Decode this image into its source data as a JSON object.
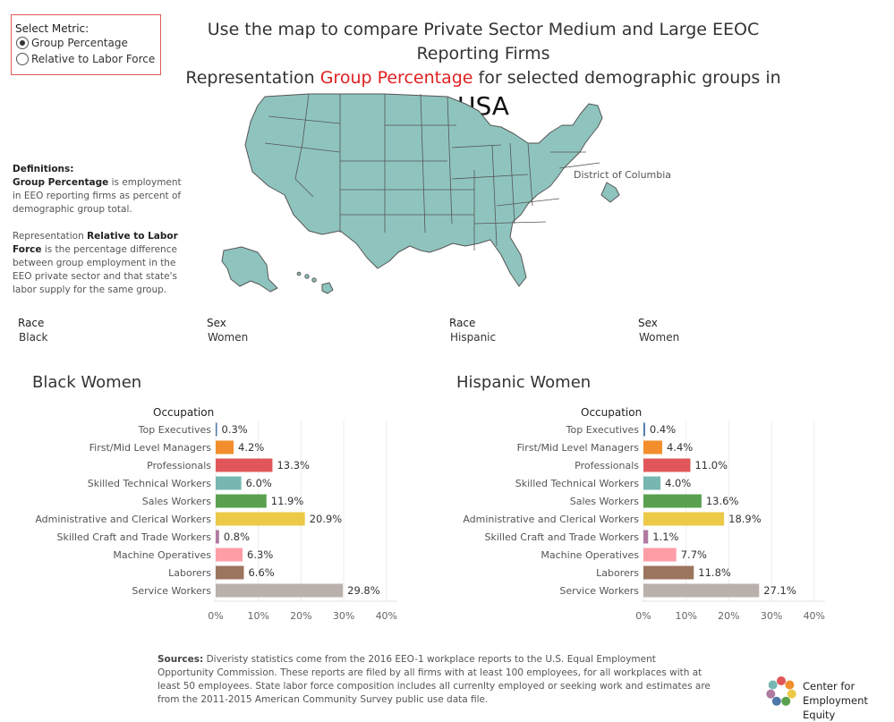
{
  "metric_selector": {
    "header": "Select Metric:",
    "options": [
      {
        "label": "Group Percentage",
        "selected": true
      },
      {
        "label": "Relative to Labor Force",
        "selected": false
      }
    ]
  },
  "title": {
    "line1": "Use the map to compare Private Sector Medium and Large EEOC Reporting Firms",
    "line2_pre": "Representation",
    "line2_highlight": "Group Percentage",
    "line2_post": "for selected demographic groups in",
    "line3": "USA",
    "highlight_color": "#e02020"
  },
  "map": {
    "dc_label": "District of Columbia",
    "fill_color": "#8fc4be",
    "stroke_color": "#555555"
  },
  "definitions": {
    "header": "Definitions:",
    "p1_term": "Group Percentage",
    "p1_text": "is employment in EEO reporting firms as percent of demographic group total.",
    "p2_pre": "Representation",
    "p2_term": "Relative to Labor Force",
    "p2_text": "is the percentage difference between group employment in the EEO private sector and that state's labor supply for the same group."
  },
  "filters": {
    "left_race_label": "Race",
    "left_race_value": "Black",
    "left_sex_label": "Sex",
    "left_sex_value": "Women",
    "right_race_label": "Race",
    "right_race_value": "Hispanic",
    "right_sex_label": "Sex",
    "right_sex_value": "Women"
  },
  "chart_data": [
    {
      "type": "bar",
      "orientation": "horizontal",
      "title": "Black Women",
      "ylabel": "Occupation",
      "categories": [
        "Top Executives",
        "First/Mid Level Managers",
        "Professionals",
        "Skilled Technical Workers",
        "Sales Workers",
        "Administrative and Clerical Workers",
        "Skilled Craft and Trade Workers",
        "Machine Operatives",
        "Laborers",
        "Service Workers"
      ],
      "values": [
        0.3,
        4.2,
        13.3,
        6.0,
        11.9,
        20.9,
        0.8,
        6.3,
        6.6,
        29.8
      ],
      "value_labels": [
        "0.3%",
        "4.2%",
        "13.3%",
        "6.0%",
        "11.9%",
        "20.9%",
        "0.8%",
        "6.3%",
        "6.6%",
        "29.8%"
      ],
      "colors": [
        "#4e79a7",
        "#f28e2b",
        "#e15759",
        "#76b7b2",
        "#59a14f",
        "#edc948",
        "#b07aa1",
        "#ff9da7",
        "#9c755f",
        "#bab0ac"
      ],
      "xlim": [
        0,
        40
      ],
      "xticks": [
        "0%",
        "10%",
        "20%",
        "30%",
        "40%"
      ],
      "grid": true
    },
    {
      "type": "bar",
      "orientation": "horizontal",
      "title": "Hispanic Women",
      "ylabel": "Occupation",
      "categories": [
        "Top Executives",
        "First/Mid Level Managers",
        "Professionals",
        "Skilled Technical Workers",
        "Sales Workers",
        "Administrative and Clerical Workers",
        "Skilled Craft and Trade Workers",
        "Machine Operatives",
        "Laborers",
        "Service Workers"
      ],
      "values": [
        0.4,
        4.4,
        11.0,
        4.0,
        13.6,
        18.9,
        1.1,
        7.7,
        11.8,
        27.1
      ],
      "value_labels": [
        "0.4%",
        "4.4%",
        "11.0%",
        "4.0%",
        "13.6%",
        "18.9%",
        "1.1%",
        "7.7%",
        "11.8%",
        "27.1%"
      ],
      "colors": [
        "#4e79a7",
        "#f28e2b",
        "#e15759",
        "#76b7b2",
        "#59a14f",
        "#edc948",
        "#b07aa1",
        "#ff9da7",
        "#9c755f",
        "#bab0ac"
      ],
      "xlim": [
        0,
        40
      ],
      "xticks": [
        "0%",
        "10%",
        "20%",
        "30%",
        "40%"
      ],
      "grid": true
    }
  ],
  "sources": {
    "label": "Sources:",
    "text": "Diveristy statistics come from the 2016 EEO-1 workplace reports to the U.S. Equal Employment Opportunity Commission. These reports are filed by all firms with at least 100 employees, for all workplaces with at least 50 employees. State labor force composition includes all currenlty employed or seeking work and estimates are from the 2011-2015  American Community Survey public use data file."
  },
  "logo": {
    "line1": "Center for",
    "line2": "Employment Equity",
    "colors": [
      "#e15759",
      "#f28e2b",
      "#edc948",
      "#59a14f",
      "#4e79a7",
      "#b07aa1",
      "#76b7b2"
    ]
  }
}
